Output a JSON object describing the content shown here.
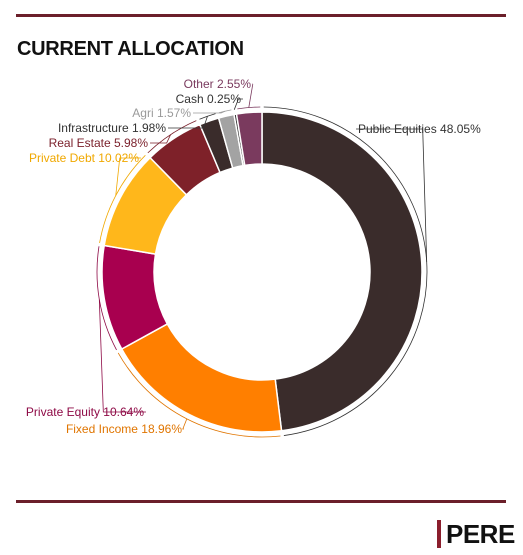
{
  "header": {
    "title": "CURRENT ALLOCATION"
  },
  "logo": {
    "text": "PERE",
    "accent_color": "#8b1e2d"
  },
  "rule_color": "#6b1f2a",
  "chart_data": {
    "type": "pie",
    "variant": "donut",
    "start_angle_deg": 0,
    "direction": "clockwise",
    "slices": [
      {
        "name": "Public Equities",
        "value": 48.05,
        "label": "Public Equities 48.05%",
        "color": "#3a2c2b",
        "label_color": "#333333"
      },
      {
        "name": "Fixed Income",
        "value": 18.96,
        "label": "Fixed Income 18.96%",
        "color": "#ff7f00",
        "label_color": "#e07500"
      },
      {
        "name": "Private Equity",
        "value": 10.64,
        "label": "Private Equity 10.64%",
        "color": "#a8004f",
        "label_color": "#8e0a46"
      },
      {
        "name": "Private Debt",
        "value": 10.02,
        "label": "Private Debt 10.02%",
        "color": "#ffb71b",
        "label_color": "#f0a800"
      },
      {
        "name": "Real Estate",
        "value": 5.98,
        "label": "Real Estate 5.98%",
        "color": "#7e2129",
        "label_color": "#7a1f2a"
      },
      {
        "name": "Infrastructure",
        "value": 1.98,
        "label": "Infrastructure 1.98%",
        "color": "#3a2c2b",
        "label_color": "#333333"
      },
      {
        "name": "Agri",
        "value": 1.57,
        "label": "Agri 1.57%",
        "color": "#a3a3a3",
        "label_color": "#9a9a9a"
      },
      {
        "name": "Cash",
        "value": 0.25,
        "label": "Cash 0.25%",
        "color": "#2e2e2e",
        "label_color": "#333333"
      },
      {
        "name": "Other",
        "value": 2.55,
        "label": "Other 2.55%",
        "color": "#7a3a5e",
        "label_color": "#7a3a5e"
      }
    ]
  }
}
